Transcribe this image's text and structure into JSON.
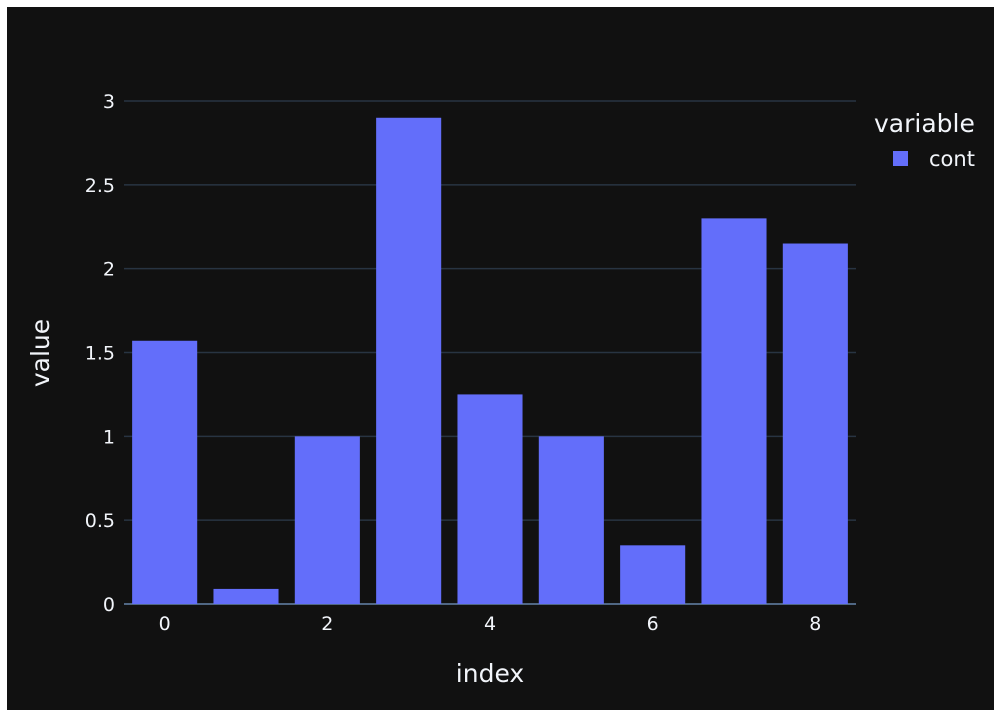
{
  "chart_data": {
    "type": "bar",
    "x": [
      0,
      1,
      2,
      3,
      4,
      5,
      6,
      7,
      8
    ],
    "series": [
      {
        "name": "cont",
        "values": [
          1.57,
          0.09,
          1.0,
          2.9,
          1.25,
          1.0,
          0.35,
          2.3,
          2.15
        ],
        "color": "#636efa"
      }
    ],
    "xlabel": "index",
    "ylabel": "value",
    "ylim": [
      0,
      3.2
    ],
    "yticks": [
      0,
      0.5,
      1,
      1.5,
      2,
      2.5,
      3
    ],
    "ytick_labels": [
      "0",
      "0.5",
      "1",
      "1.5",
      "2",
      "2.5",
      "3"
    ],
    "xticks": [
      0,
      2,
      4,
      6,
      8
    ],
    "xtick_labels": [
      "0",
      "2",
      "4",
      "6",
      "8"
    ],
    "grid": true,
    "legend": {
      "title": "variable",
      "placement": "top-right"
    },
    "colors": {
      "background": "#111111",
      "grid": "#283442",
      "text": "#f2f5fa"
    }
  }
}
